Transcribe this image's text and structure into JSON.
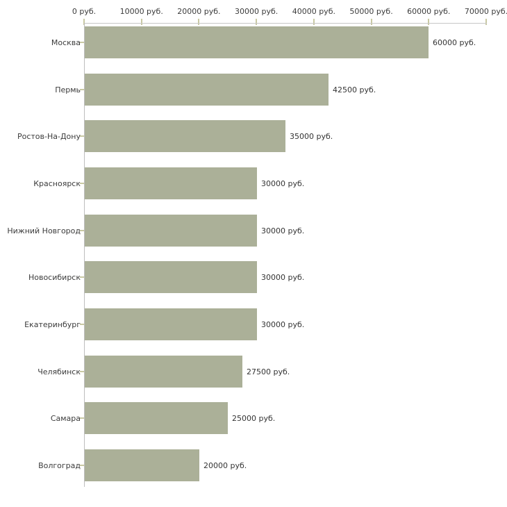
{
  "chart_data": {
    "type": "bar",
    "orientation": "horizontal",
    "title": "",
    "unit": "руб.",
    "categories": [
      "Москва",
      "Пермь",
      "Ростов-На-Дону",
      "Красноярск",
      "Нижний Новгород",
      "Новосибирск",
      "Екатеринбург",
      "Челябинск",
      "Самара",
      "Волгоград"
    ],
    "values": [
      60000,
      42500,
      35000,
      30000,
      30000,
      30000,
      30000,
      27500,
      25000,
      20000
    ],
    "value_labels": [
      "60000 руб.",
      "42500 руб.",
      "35000 руб.",
      "30000 руб.",
      "30000 руб.",
      "30000 руб.",
      "30000 руб.",
      "27500 руб.",
      "25000 руб.",
      "20000 руб."
    ],
    "xlim": [
      0,
      70000
    ],
    "x_tick_values": [
      0,
      10000,
      20000,
      30000,
      40000,
      50000,
      60000,
      70000
    ],
    "x_tick_labels": [
      "0 руб.",
      "10000 руб.",
      "20000 руб.",
      "30000 руб.",
      "40000 руб.",
      "50000 руб.",
      "60000 руб.",
      "70000 руб."
    ],
    "grid": false,
    "legend": null,
    "bar_color": "#abb098",
    "axis_line_color": "#c6c6c6",
    "tick_color": "#c9c9a3",
    "text_color": "#3b3b3b",
    "background_color": "#ffffff"
  }
}
